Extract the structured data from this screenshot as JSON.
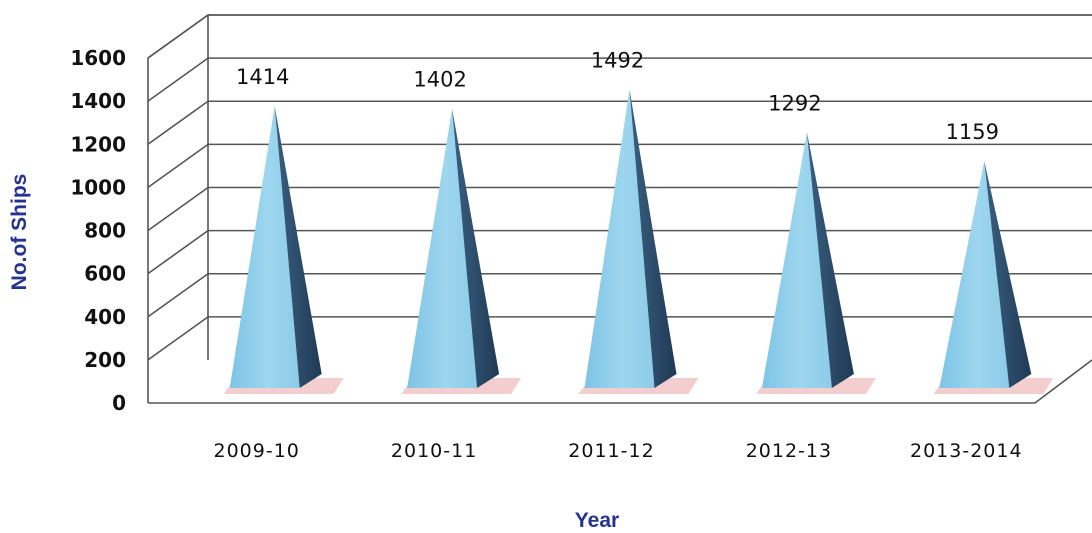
{
  "chart_data": {
    "type": "bar",
    "bar_shape": "pyramid",
    "three_d": true,
    "categories": [
      "2009-10",
      "2010-11",
      "2011-12",
      "2012-13",
      "2013-2014"
    ],
    "values": [
      1414,
      1402,
      1492,
      1292,
      1159
    ],
    "data_labels": [
      "1414",
      "1402",
      "1492",
      "1292",
      "1159"
    ],
    "xlabel": "Year",
    "ylabel": "No.of Ships",
    "ylim": [
      0,
      1600
    ],
    "yticks": [
      "0",
      "200",
      "400",
      "600",
      "800",
      "1000",
      "1200",
      "1400",
      "1600"
    ],
    "grid": true,
    "legend": "none",
    "colors": {
      "bar_front": "#8ecdea",
      "bar_side": "#2a4a66",
      "shadow": "#f2c6c6",
      "axis_title": "#24338f",
      "grid": "#555555"
    }
  }
}
